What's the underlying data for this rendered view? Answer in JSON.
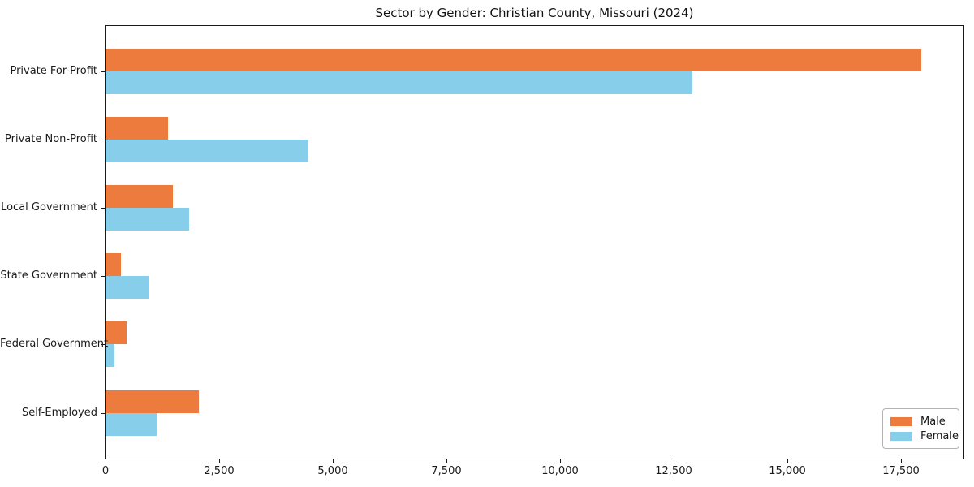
{
  "chart_data": {
    "type": "bar",
    "orientation": "horizontal",
    "title": "Sector by Gender: Christian County, Missouri (2024)",
    "categories": [
      "Private For-Profit",
      "Private Non-Profit",
      "Local Government",
      "State Government",
      "Federal Government",
      "Self-Employed"
    ],
    "series": [
      {
        "name": "Male",
        "color": "#ec7b3d",
        "values": [
          17940,
          1380,
          1490,
          340,
          455,
          2045
        ]
      },
      {
        "name": "Female",
        "color": "#87ceeb",
        "values": [
          12910,
          4440,
          1830,
          960,
          190,
          1120
        ]
      }
    ],
    "xlabel": "",
    "ylabel": "",
    "xlim": [
      0,
      18875
    ],
    "xticks": [
      0,
      2500,
      5000,
      7500,
      10000,
      12500,
      15000,
      17500
    ],
    "xtick_labels": [
      "0",
      "2,500",
      "5,000",
      "7,500",
      "10,000",
      "12,500",
      "15,000",
      "17,500"
    ],
    "grid": false,
    "legend": {
      "position": "lower right",
      "entries": [
        "Male",
        "Female"
      ]
    }
  },
  "colors": {
    "background": "#ffffff",
    "axis": "#1a1a1a",
    "legend_border": "#b3b3b3",
    "male": "#ec7b3d",
    "female": "#87ceeb"
  }
}
